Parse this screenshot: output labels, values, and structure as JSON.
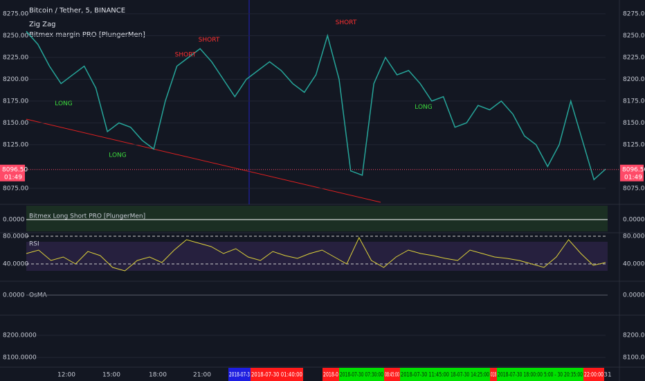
{
  "header": {
    "title": "Bitcoin / Tether, 5, BINANCE",
    "indicators": [
      "Zig Zag",
      "Bitmex margin PRO [PlungerMen]"
    ]
  },
  "price_pane": {
    "ylim": [
      8059,
      8290
    ],
    "yticks": [
      {
        "value": 8075,
        "label": "8075.00"
      },
      {
        "value": 8125,
        "label": "8125.00"
      },
      {
        "value": 8150,
        "label": "8150.00"
      },
      {
        "value": 8175,
        "label": "8175.00"
      },
      {
        "value": 8200,
        "label": "8200.00"
      },
      {
        "value": 8225,
        "label": "8225.00"
      },
      {
        "value": 8250,
        "label": "8250.00"
      },
      {
        "value": 8275,
        "label": "8275.00"
      }
    ],
    "closes": [
      8255,
      8240,
      8215,
      8195,
      8205,
      8215,
      8190,
      8140,
      8150,
      8145,
      8130,
      8120,
      8175,
      8215,
      8225,
      8235,
      8220,
      8200,
      8180,
      8200,
      8210,
      8220,
      8210,
      8195,
      8185,
      8205,
      8250,
      8200,
      8095,
      8090,
      8195,
      8225,
      8205,
      8210,
      8195,
      8175,
      8180,
      8145,
      8150,
      8170,
      8165,
      8175,
      8160,
      8135,
      8125,
      8100,
      8125,
      8175,
      8130,
      8085,
      8097
    ],
    "line_color": "#26a69a",
    "signals": [
      {
        "label": "LONG",
        "price": 8172,
        "color": "#3ddc3d"
      },
      {
        "label": "LONG",
        "price": 8113,
        "color": "#3ddc3d"
      },
      {
        "label": "LONG",
        "price": 8168,
        "color": "#3ddc3d"
      },
      {
        "label": "SHORT",
        "price": 8265,
        "color": "#ff3030"
      },
      {
        "label": "SHORT",
        "price": 8228,
        "color": "#ff3030"
      },
      {
        "label": "SHORT",
        "price": 8245,
        "color": "#ff3030"
      }
    ],
    "last_price": {
      "value": 8096.5,
      "label": "8096.50"
    },
    "countdown": "01:49"
  },
  "long_short_pane": {
    "title": "Bitmex Long Short PRO [PlungerMen]",
    "ticks": [
      "0.0000"
    ]
  },
  "rsi_pane": {
    "title": "RSI",
    "ylim": [
      16,
      84
    ],
    "yticks": [
      {
        "value": 80,
        "label": "80.0000"
      },
      {
        "value": 40,
        "label": "40.0000"
      }
    ],
    "values": [
      55,
      60,
      45,
      50,
      40,
      58,
      52,
      35,
      30,
      45,
      50,
      42,
      60,
      75,
      70,
      65,
      55,
      62,
      50,
      45,
      58,
      52,
      48,
      55,
      60,
      50,
      40,
      78,
      45,
      35,
      50,
      60,
      55,
      52,
      48,
      45,
      60,
      55,
      50,
      48,
      45,
      40,
      35,
      50,
      75,
      55,
      38,
      42
    ],
    "color": "#e0d43a"
  },
  "osma_pane": {
    "title": "OsMA",
    "ticks": [
      "0.0000"
    ]
  },
  "empty_pane": {
    "ylim": [
      8056,
      8291
    ],
    "yticks": [
      {
        "value": 8200,
        "label": "8200.0000"
      },
      {
        "value": 8100,
        "label": "8100.0000"
      }
    ]
  },
  "time_axis": {
    "labels": [
      {
        "text": "12:00",
        "color": null
      },
      {
        "text": "15:00",
        "color": null
      },
      {
        "text": "18:00",
        "color": null
      },
      {
        "text": "21:00",
        "color": null
      },
      {
        "text": "2018-07-3",
        "color": "#1e1ee0"
      },
      {
        "text": "2018-07-30 01:40:00",
        "color": "#ff1a1a"
      },
      {
        "text": "2018-0",
        "color": "#ff1a1a"
      },
      {
        "text": "2018-07-30 07:30:00",
        "color": "#00e000"
      },
      {
        "text": "08:45:00",
        "color": "#ff1a1a"
      },
      {
        "text": "2018-07-30 11:45:00",
        "color": "#00e000"
      },
      {
        "text": "18-07-30 14:25:00",
        "color": "#00e000"
      },
      {
        "text": "018",
        "color": "#ff1a1a"
      },
      {
        "text": "2018-07-30 18:00:00",
        "color": "#00e000"
      },
      {
        "text": "5:00 - 30 20:35:00",
        "color": "#00e000"
      },
      {
        "text": "22:00:00",
        "color": "#ff1a1a"
      },
      {
        "text": "31",
        "color": null
      }
    ]
  }
}
